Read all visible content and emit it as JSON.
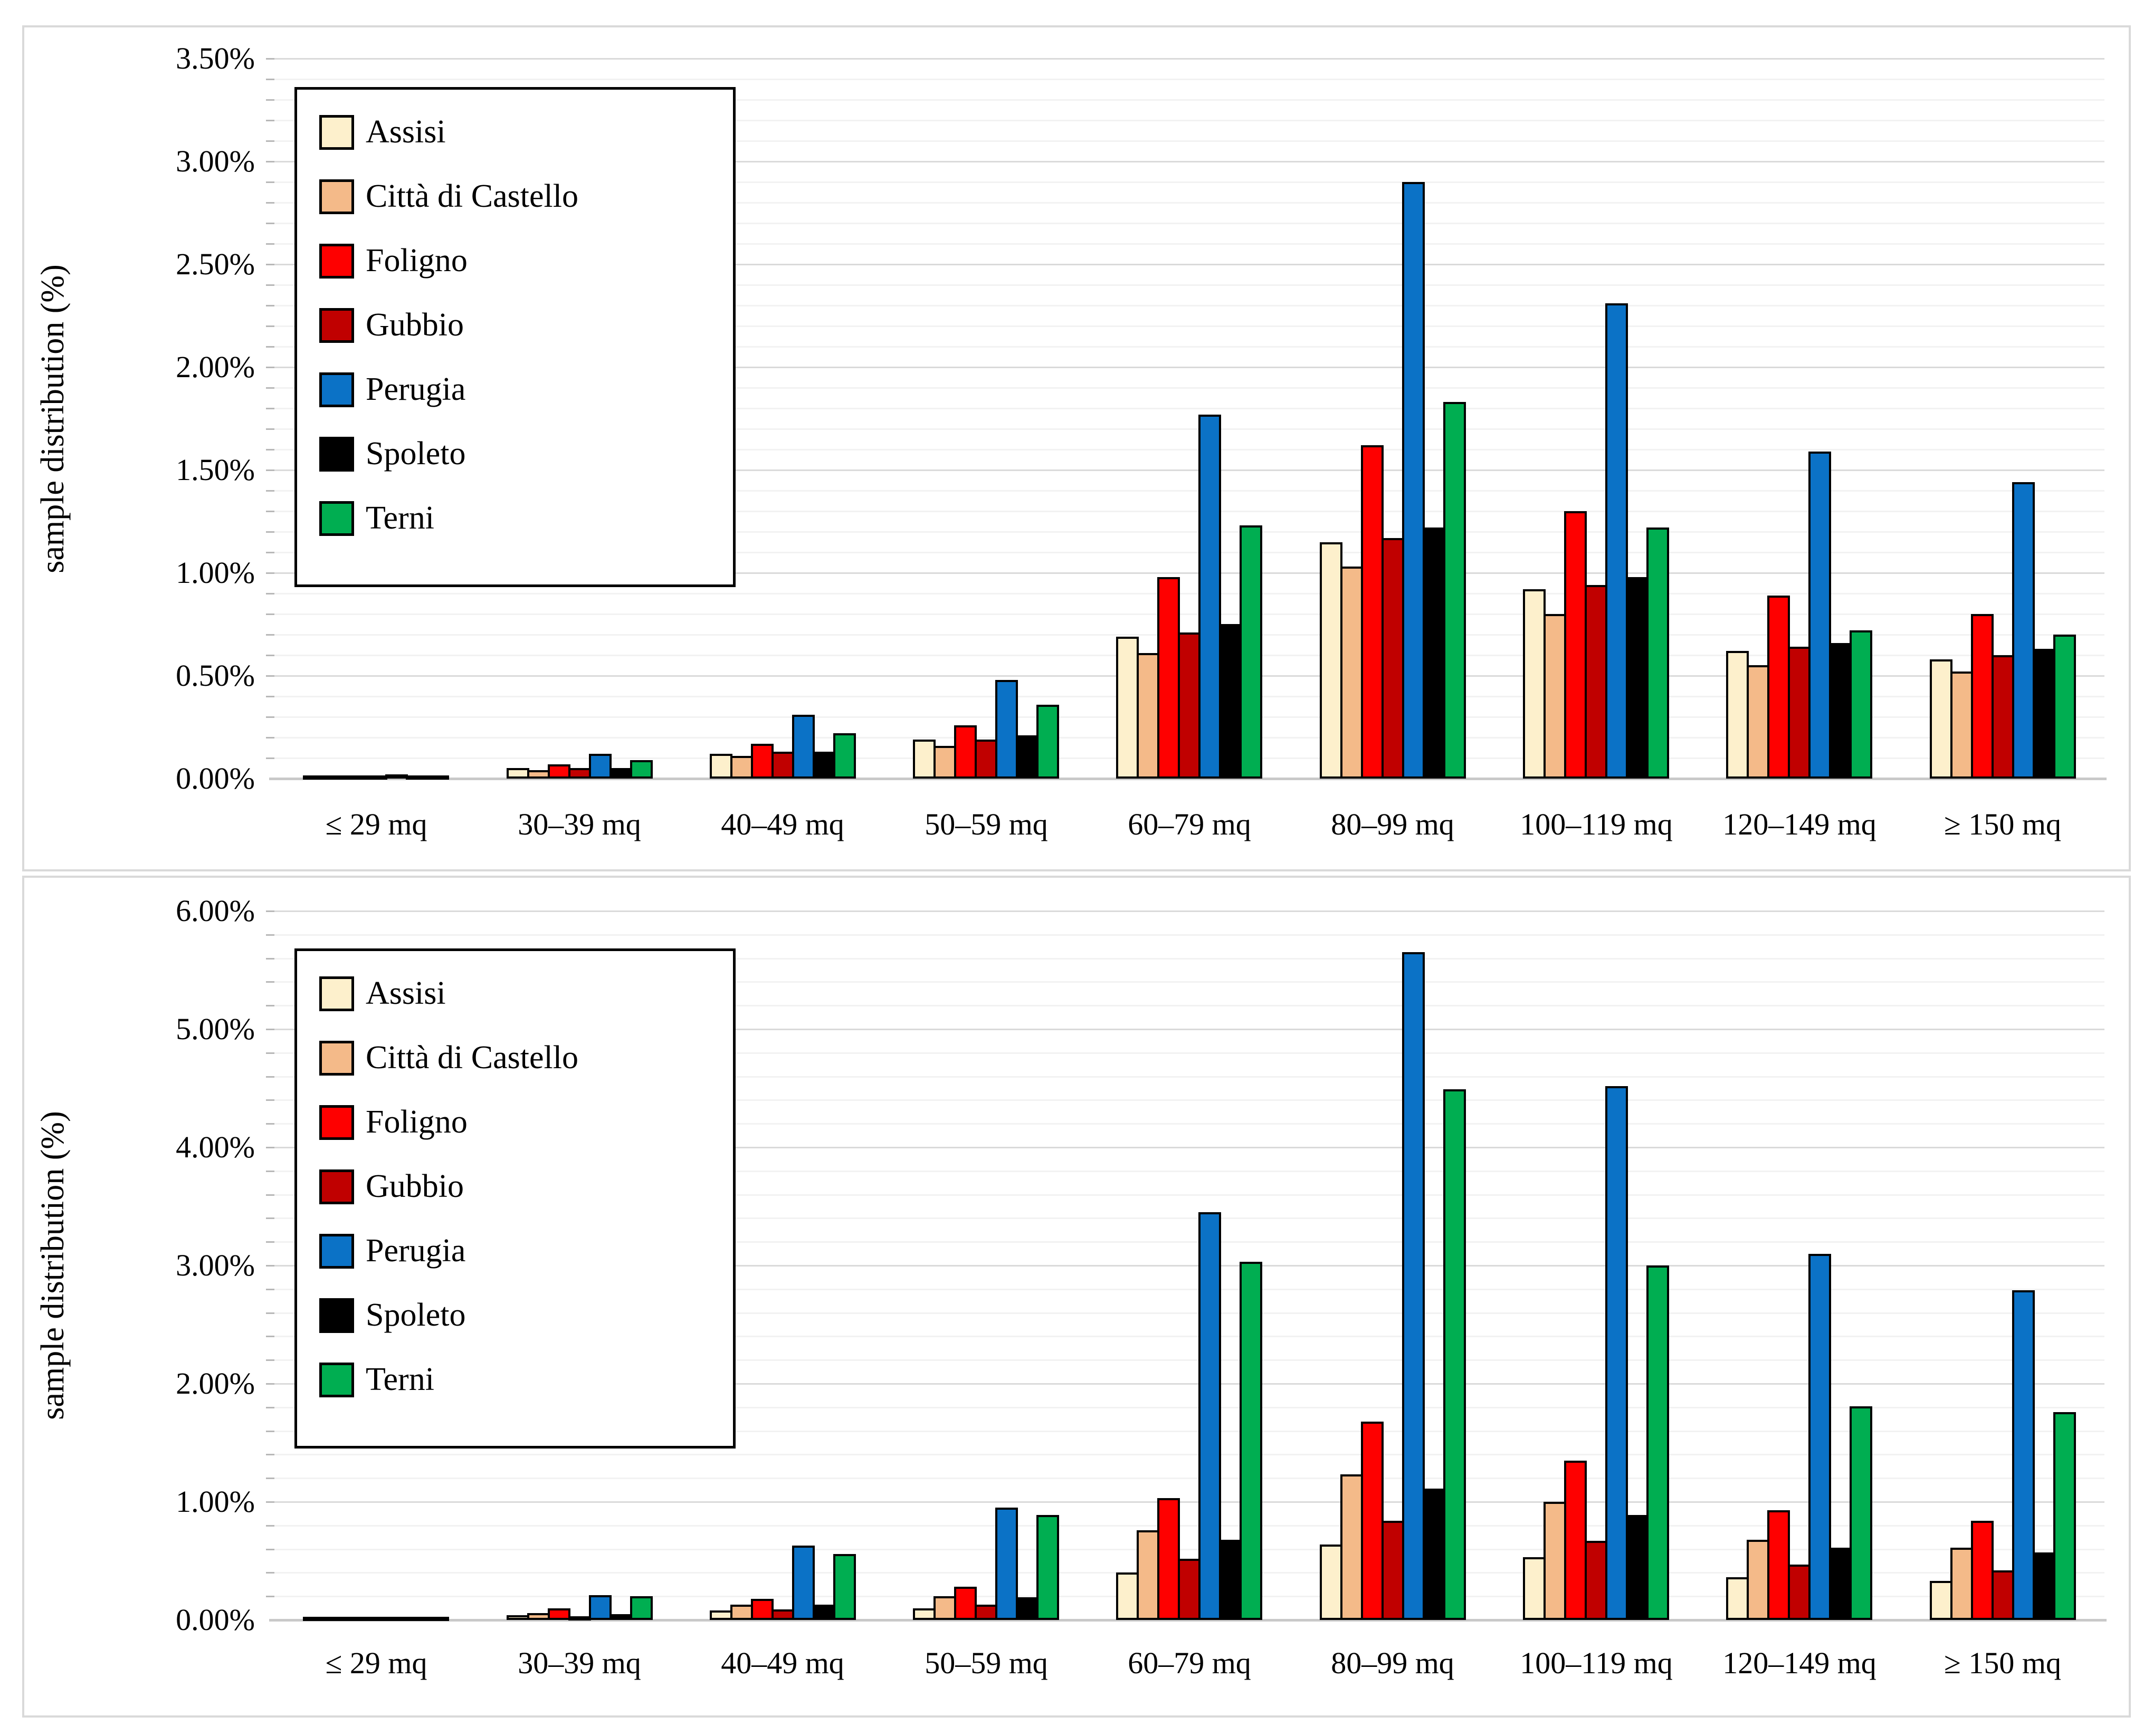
{
  "figure": {
    "background": "#FFFFFF",
    "panel_border_color": "#D9D9D9",
    "gridline_minor_color": "#F2F2F2",
    "gridline_major_color": "#DADADA",
    "axis_line_color": "#C9C9C9",
    "bar_outline_color": "#000000"
  },
  "chart_data": [
    {
      "type": "bar",
      "title": "",
      "ylabel": "sample distribution (%)",
      "xlabel": "",
      "ylim": [
        0,
        3.5
      ],
      "ytick_step": 0.5,
      "minor_step": 0.1,
      "ytick_format": "0.00%",
      "grid": true,
      "legend_position": "upper-left",
      "categories": [
        "≤ 29 mq",
        "30–39 mq",
        "40–49 mq",
        "50–59 mq",
        "60–79 mq",
        "80–99 mq",
        "100–119 mq",
        "120–149 mq",
        "≥ 150 mq"
      ],
      "series": [
        {
          "name": "Assisi",
          "color": "#FDF0CC",
          "values": [
            0.01,
            0.05,
            0.12,
            0.19,
            0.69,
            1.15,
            0.92,
            0.62,
            0.58
          ]
        },
        {
          "name": "Città di Castello",
          "color": "#F4BA89",
          "values": [
            0.01,
            0.04,
            0.11,
            0.16,
            0.61,
            1.03,
            0.8,
            0.55,
            0.52
          ]
        },
        {
          "name": "Foligno",
          "color": "#FE0000",
          "values": [
            0.01,
            0.07,
            0.17,
            0.26,
            0.98,
            1.62,
            1.3,
            0.89,
            0.8
          ]
        },
        {
          "name": "Gubbio",
          "color": "#C00000",
          "values": [
            0.01,
            0.05,
            0.13,
            0.19,
            0.71,
            1.17,
            0.94,
            0.64,
            0.6
          ]
        },
        {
          "name": "Perugia",
          "color": "#0B72C6",
          "values": [
            0.02,
            0.12,
            0.31,
            0.48,
            1.77,
            2.9,
            2.31,
            1.59,
            1.44
          ]
        },
        {
          "name": "Spoleto",
          "color": "#000000",
          "values": [
            0.01,
            0.05,
            0.13,
            0.21,
            0.75,
            1.22,
            0.98,
            0.66,
            0.63
          ]
        },
        {
          "name": "Terni",
          "color": "#00AE51",
          "values": [
            0.01,
            0.09,
            0.22,
            0.36,
            1.23,
            1.83,
            1.22,
            0.72,
            0.7
          ]
        }
      ]
    },
    {
      "type": "bar",
      "title": "",
      "ylabel": "sample distribution (%)",
      "xlabel": "",
      "ylim": [
        0,
        6
      ],
      "ytick_step": 1,
      "minor_step": 0.2,
      "ytick_format": "0.00%",
      "grid": true,
      "legend_position": "upper-left",
      "categories": [
        "≤ 29 mq",
        "30–39 mq",
        "40–49 mq",
        "50–59 mq",
        "60–79 mq",
        "80–99 mq",
        "100–119 mq",
        "120–149 mq",
        "≥ 150 mq"
      ],
      "series": [
        {
          "name": "Assisi",
          "color": "#FDF0CC",
          "values": [
            0.01,
            0.04,
            0.08,
            0.1,
            0.4,
            0.64,
            0.53,
            0.36,
            0.33
          ]
        },
        {
          "name": "Città di Castello",
          "color": "#F4BA89",
          "values": [
            0.01,
            0.06,
            0.13,
            0.2,
            0.76,
            1.23,
            1.0,
            0.68,
            0.61
          ]
        },
        {
          "name": "Foligno",
          "color": "#FE0000",
          "values": [
            0.02,
            0.1,
            0.18,
            0.28,
            1.03,
            1.68,
            1.35,
            0.93,
            0.84
          ]
        },
        {
          "name": "Gubbio",
          "color": "#C00000",
          "values": [
            0.01,
            0.03,
            0.09,
            0.13,
            0.52,
            0.84,
            0.67,
            0.47,
            0.42
          ]
        },
        {
          "name": "Perugia",
          "color": "#0B72C6",
          "values": [
            0.02,
            0.21,
            0.63,
            0.95,
            3.45,
            5.65,
            4.52,
            3.1,
            2.79
          ]
        },
        {
          "name": "Spoleto",
          "color": "#000000",
          "values": [
            0.01,
            0.05,
            0.13,
            0.19,
            0.68,
            1.11,
            0.89,
            0.61,
            0.57
          ]
        },
        {
          "name": "Terni",
          "color": "#00AE51",
          "values": [
            0.02,
            0.2,
            0.56,
            0.89,
            3.03,
            4.49,
            3.0,
            1.81,
            1.76
          ]
        }
      ]
    }
  ]
}
